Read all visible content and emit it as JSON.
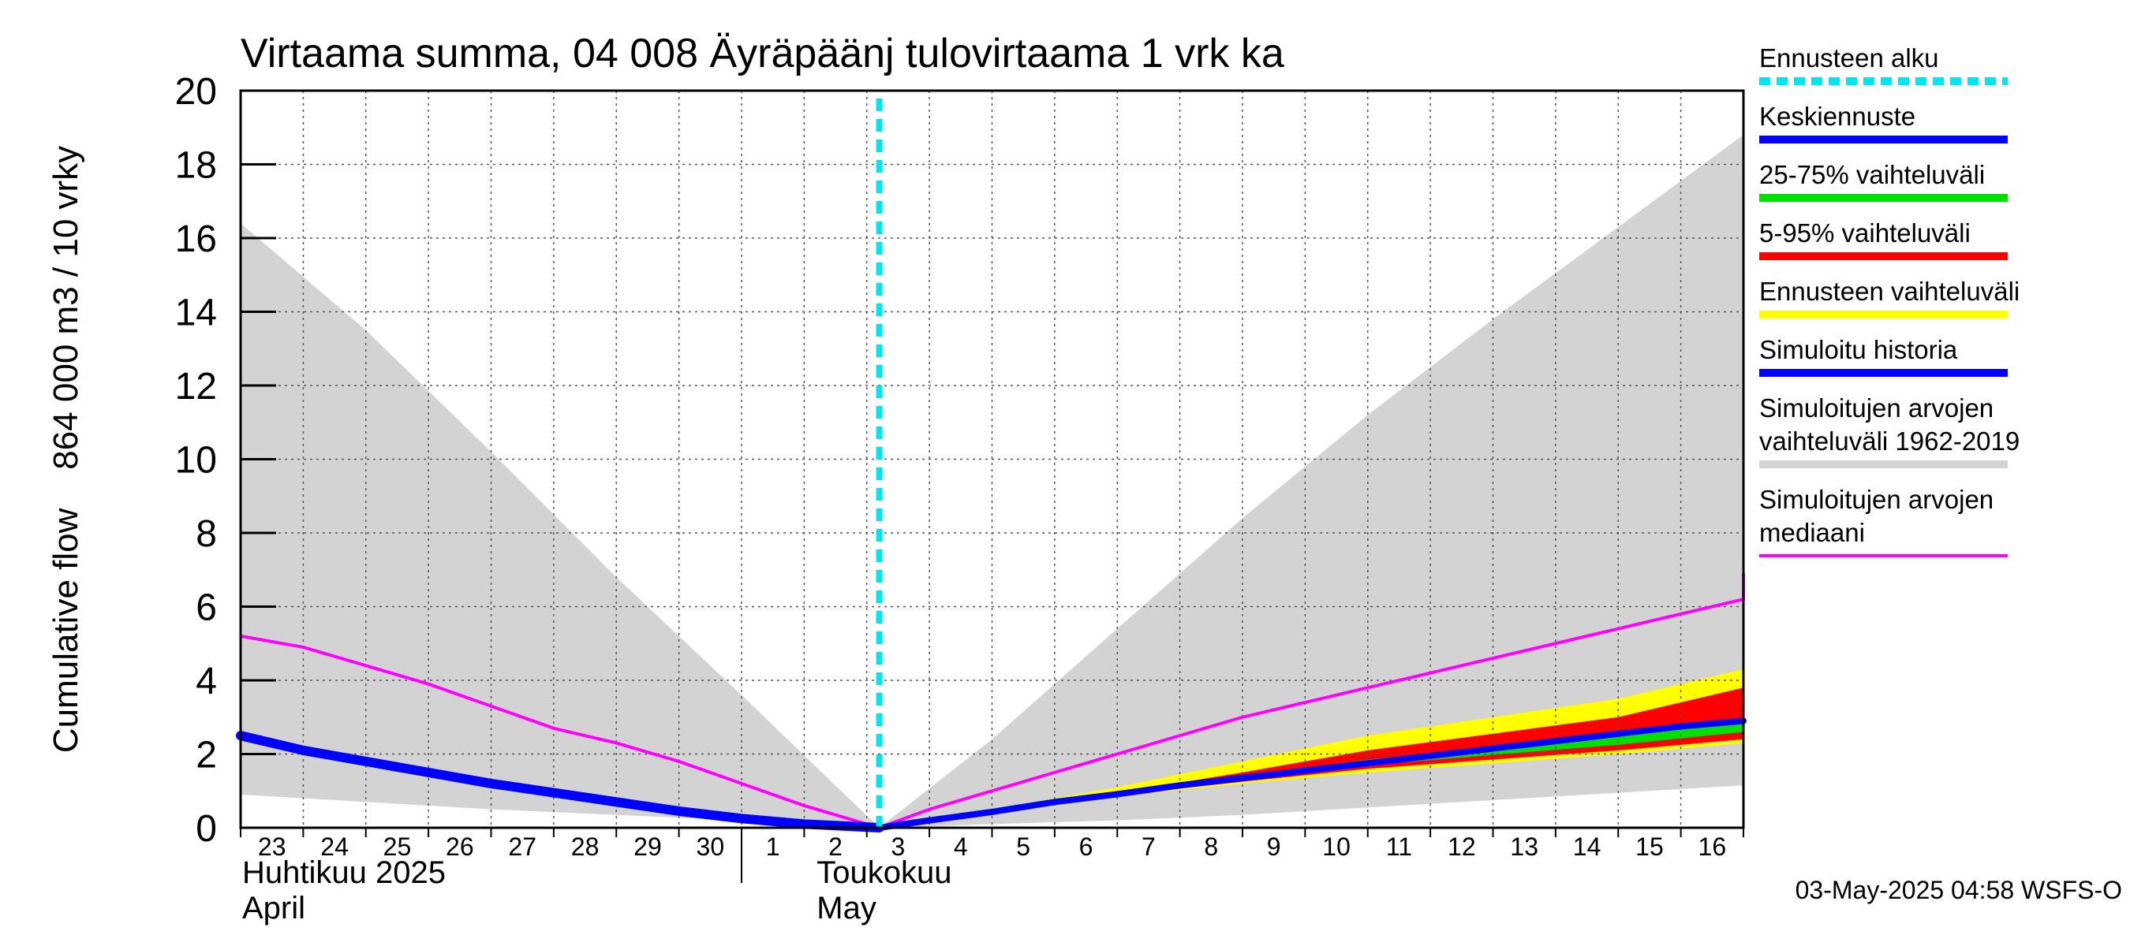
{
  "chart_data": {
    "type": "area",
    "title": "Virtaama summa, 04 008 Äyräpäänj tulovirtaama 1 vrk ka",
    "ylabel": "Cumulative flow    864 000 m3 / 10 vrky",
    "ylim": [
      0,
      20
    ],
    "yticks": [
      "0",
      "2",
      "4",
      "6",
      "8",
      "10",
      "12",
      "14",
      "16",
      "18",
      "20"
    ],
    "xlim": [
      0,
      24
    ],
    "x_tick_labels": [
      "23",
      "24",
      "25",
      "26",
      "27",
      "28",
      "29",
      "30",
      "1",
      "2",
      "3",
      "4",
      "5",
      "6",
      "7",
      "8",
      "9",
      "10",
      "11",
      "12",
      "13",
      "14",
      "15",
      "16"
    ],
    "month_labels": {
      "april_fi": "Huhtikuu  2025",
      "april_en": "April",
      "may_fi": "Toukokuu",
      "may_en": "May"
    },
    "grid": true,
    "legend_placement": "right",
    "forecast_start_x": 10.2,
    "colors": {
      "forecast_start": "#00e5ee",
      "mean_forecast": "#0000ff",
      "range_25_75": "#00e000",
      "range_5_95": "#ff0000",
      "forecast_range": "#ffff00",
      "simulated_history": "#0000ff",
      "historical_range": "#d3d3d3",
      "historical_median": "#ff00ff"
    },
    "series": [
      {
        "key": "historical_range",
        "name": "Simuloitujen arvojen vaihteluväli 1962-2019",
        "upper": [
          [
            0,
            16.4
          ],
          [
            2,
            13.5
          ],
          [
            4,
            10.2
          ],
          [
            6,
            6.8
          ],
          [
            8,
            3.6
          ],
          [
            10.2,
            0
          ],
          [
            12,
            2.4
          ],
          [
            14,
            5.4
          ],
          [
            16,
            8.4
          ],
          [
            18,
            11.2
          ],
          [
            20,
            13.8
          ],
          [
            22,
            16.3
          ],
          [
            24,
            18.8
          ]
        ],
        "lower": [
          [
            0,
            0.9
          ],
          [
            2,
            0.7
          ],
          [
            4,
            0.5
          ],
          [
            6,
            0.35
          ],
          [
            8,
            0.2
          ],
          [
            10.2,
            0
          ],
          [
            12,
            0.1
          ],
          [
            14,
            0.2
          ],
          [
            16,
            0.35
          ],
          [
            18,
            0.55
          ],
          [
            20,
            0.75
          ],
          [
            22,
            0.95
          ],
          [
            24,
            1.15
          ]
        ]
      },
      {
        "key": "forecast_range",
        "name": "Ennusteen vaihteluväli",
        "upper": [
          [
            10.2,
            0
          ],
          [
            12,
            0.5
          ],
          [
            14,
            1.1
          ],
          [
            16,
            1.8
          ],
          [
            18,
            2.5
          ],
          [
            22,
            3.5
          ],
          [
            24,
            4.3
          ]
        ],
        "lower": [
          [
            10.2,
            0
          ],
          [
            12,
            0.4
          ],
          [
            14,
            0.85
          ],
          [
            16,
            1.2
          ],
          [
            18,
            1.5
          ],
          [
            22,
            2.0
          ],
          [
            24,
            2.3
          ]
        ]
      },
      {
        "key": "range_5_95",
        "name": "5-95% vaihteluväli",
        "upper": [
          [
            10.2,
            0
          ],
          [
            12,
            0.45
          ],
          [
            14,
            0.95
          ],
          [
            16,
            1.5
          ],
          [
            18,
            2.1
          ],
          [
            22,
            3.0
          ],
          [
            24,
            3.8
          ]
        ],
        "lower": [
          [
            10.2,
            0
          ],
          [
            12,
            0.42
          ],
          [
            14,
            0.88
          ],
          [
            16,
            1.25
          ],
          [
            18,
            1.6
          ],
          [
            22,
            2.1
          ],
          [
            24,
            2.4
          ]
        ]
      },
      {
        "key": "range_25_75",
        "name": "25-75% vaihteluväli",
        "upper": [
          [
            10.2,
            0
          ],
          [
            12,
            0.44
          ],
          [
            14,
            0.92
          ],
          [
            16,
            1.4
          ],
          [
            18,
            1.85
          ],
          [
            22,
            2.5
          ],
          [
            24,
            2.9
          ]
        ],
        "lower": [
          [
            10.2,
            0
          ],
          [
            12,
            0.43
          ],
          [
            14,
            0.9
          ],
          [
            16,
            1.3
          ],
          [
            18,
            1.7
          ],
          [
            22,
            2.25
          ],
          [
            24,
            2.6
          ]
        ]
      },
      {
        "key": "historical_median",
        "name": "Simuloitujen arvojen mediaani",
        "line": [
          [
            0,
            5.2
          ],
          [
            1,
            4.9
          ],
          [
            2,
            4.4
          ],
          [
            3,
            3.9
          ],
          [
            4,
            3.3
          ],
          [
            5,
            2.7
          ],
          [
            6,
            2.3
          ],
          [
            7,
            1.8
          ],
          [
            8,
            1.2
          ],
          [
            9,
            0.6
          ],
          [
            10.2,
            0
          ],
          [
            11,
            0.5
          ],
          [
            12,
            1.0
          ],
          [
            13,
            1.5
          ],
          [
            14,
            2.0
          ],
          [
            15,
            2.5
          ],
          [
            16,
            3.0
          ],
          [
            17,
            3.4
          ],
          [
            18,
            3.8
          ],
          [
            19,
            4.2
          ],
          [
            20,
            4.6
          ],
          [
            21,
            5.0
          ],
          [
            22,
            5.4
          ],
          [
            23,
            5.8
          ],
          [
            24,
            6.2
          ],
          [
            24,
            6.9
          ]
        ]
      },
      {
        "key": "simulated_history",
        "name": "Simuloitu historia",
        "line": [
          [
            0,
            2.5
          ],
          [
            1,
            2.1
          ],
          [
            2,
            1.8
          ],
          [
            3,
            1.5
          ],
          [
            4,
            1.2
          ],
          [
            5,
            0.95
          ],
          [
            6,
            0.7
          ],
          [
            7,
            0.45
          ],
          [
            8,
            0.25
          ],
          [
            9,
            0.1
          ],
          [
            10.2,
            0
          ]
        ]
      },
      {
        "key": "mean_forecast",
        "name": "Keskiennuste",
        "line": [
          [
            10.2,
            0
          ],
          [
            11,
            0.2
          ],
          [
            12,
            0.43
          ],
          [
            13,
            0.7
          ],
          [
            14,
            0.91
          ],
          [
            15,
            1.15
          ],
          [
            16,
            1.35
          ],
          [
            17,
            1.55
          ],
          [
            18,
            1.75
          ],
          [
            19,
            1.95
          ],
          [
            20,
            2.15
          ],
          [
            21,
            2.35
          ],
          [
            22,
            2.55
          ],
          [
            23,
            2.75
          ],
          [
            24,
            2.9
          ]
        ]
      }
    ]
  },
  "legend": [
    {
      "key": "forecast_start",
      "lines": [
        "Ennusteen alku"
      ],
      "color": "#00e5ee",
      "style": "dashed"
    },
    {
      "key": "mean_forecast",
      "lines": [
        "Keskiennuste"
      ],
      "color": "#0000ff",
      "style": "solid"
    },
    {
      "key": "range_25_75",
      "lines": [
        "25-75% vaihteluväli"
      ],
      "color": "#00e000",
      "style": "solid"
    },
    {
      "key": "range_5_95",
      "lines": [
        "5-95% vaihteluväli"
      ],
      "color": "#ff0000",
      "style": "solid"
    },
    {
      "key": "forecast_range",
      "lines": [
        "Ennusteen vaihteluväli"
      ],
      "color": "#ffff00",
      "style": "solid"
    },
    {
      "key": "simulated_history",
      "lines": [
        "Simuloitu historia"
      ],
      "color": "#0000ff",
      "style": "solid"
    },
    {
      "key": "historical_range",
      "lines": [
        "Simuloitujen arvojen",
        "vaihteluväli 1962-2019"
      ],
      "color": "#d3d3d3",
      "style": "solid"
    },
    {
      "key": "historical_median",
      "lines": [
        "Simuloitujen arvojen",
        "mediaani"
      ],
      "color": "#ff00ff",
      "style": "thin"
    }
  ],
  "footer": "03-May-2025 04:58 WSFS-O"
}
